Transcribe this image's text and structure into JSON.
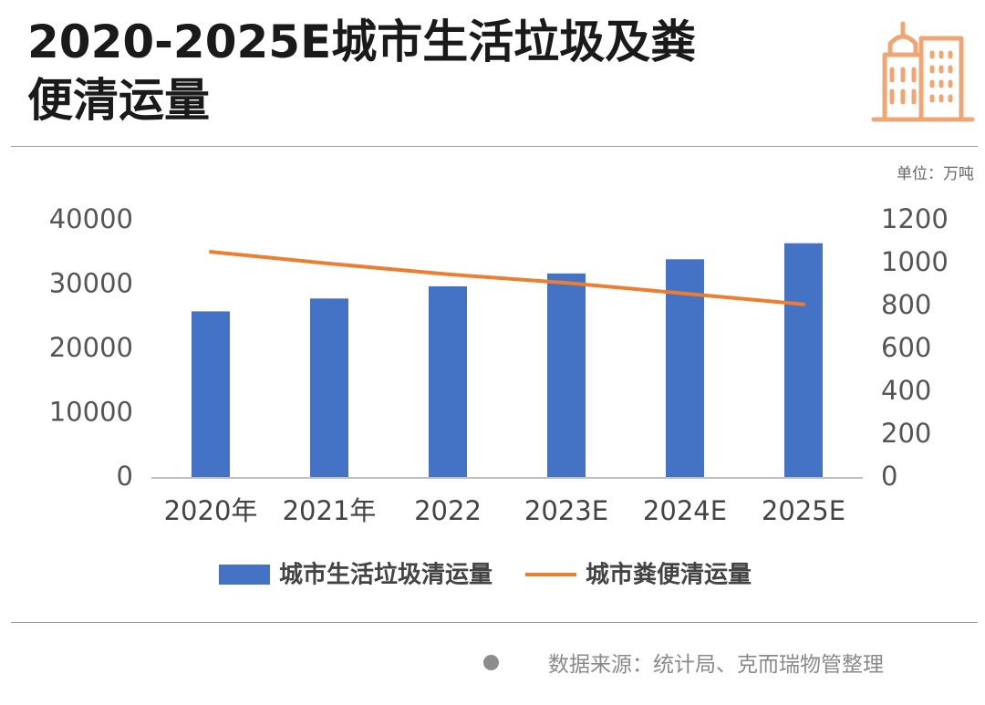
{
  "title_lines": [
    "2020-2025E城市生活垃圾及粪",
    "便清运量"
  ],
  "unit": "单位：万吨",
  "source": "数据来源：统计局、克而瑞物管整理",
  "icon": "building-icon",
  "colors": {
    "bar": "#4472C4",
    "line": "#ED7D31",
    "icon": "#F0A673",
    "rule": "#9A9A9A"
  },
  "chart_data": {
    "type": "bar",
    "categories": [
      "2020年",
      "2021年",
      "2022",
      "2023E",
      "2024E",
      "2025E"
    ],
    "series": [
      {
        "name": "城市生活垃圾清运量",
        "type": "bar",
        "axis": "left",
        "values": [
          25900,
          27900,
          29800,
          31800,
          34000,
          36500
        ]
      },
      {
        "name": "城市粪便清运量",
        "type": "line",
        "axis": "right",
        "values": [
          1055,
          1000,
          950,
          910,
          860,
          810
        ]
      }
    ],
    "y_left": {
      "ylim": [
        0,
        40000
      ],
      "ticks": [
        "0",
        "10000",
        "20000",
        "30000",
        "40000"
      ]
    },
    "y_right": {
      "ylim": [
        0,
        1200
      ],
      "ticks": [
        "0",
        "200",
        "400",
        "600",
        "800",
        "1000",
        "1200"
      ]
    },
    "legend_position": "bottom",
    "grid": false
  }
}
